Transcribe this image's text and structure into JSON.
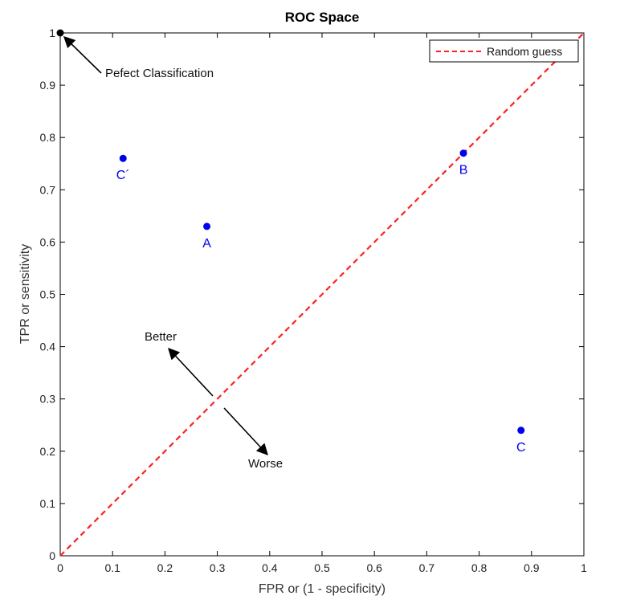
{
  "chart_data": {
    "type": "scatter",
    "title": "ROC Space",
    "xlabel": "FPR or (1 - specificity)",
    "ylabel": "TPR or sensitivity",
    "xlim": [
      0,
      1
    ],
    "ylim": [
      0,
      1
    ],
    "x_ticks": [
      0,
      0.1,
      0.2,
      0.3,
      0.4,
      0.5,
      0.6,
      0.7,
      0.8,
      0.9,
      1
    ],
    "y_ticks": [
      0,
      0.1,
      0.2,
      0.3,
      0.4,
      0.5,
      0.6,
      0.7,
      0.8,
      0.9,
      1
    ],
    "x_tick_labels": [
      "0",
      "0.1",
      "0.2",
      "0.3",
      "0.4",
      "0.5",
      "0.6",
      "0.7",
      "0.8",
      "0.9",
      "1"
    ],
    "y_tick_labels": [
      "0",
      "0.1",
      "0.2",
      "0.3",
      "0.4",
      "0.5",
      "0.6",
      "0.7",
      "0.8",
      "0.9",
      "1"
    ],
    "grid": false,
    "legend_position": "top-right",
    "points": [
      {
        "label": "A",
        "x": 0.28,
        "y": 0.63
      },
      {
        "label": "B",
        "x": 0.77,
        "y": 0.77
      },
      {
        "label": "C",
        "x": 0.88,
        "y": 0.24
      },
      {
        "label": "C´",
        "x": 0.12,
        "y": 0.76
      }
    ],
    "perfect_point": {
      "x": 0,
      "y": 1
    },
    "series": [
      {
        "name": "Random guess",
        "x": [
          0,
          1
        ],
        "y": [
          0,
          1
        ],
        "style": "dashed"
      }
    ],
    "annotations": [
      {
        "text": "Pefect Classification"
      },
      {
        "text": "Better"
      },
      {
        "text": "Worse"
      }
    ],
    "colors": {
      "points": "#0000ee",
      "random_guess": "#ff2020",
      "perfect": "#000000",
      "axes": "#000000"
    }
  }
}
